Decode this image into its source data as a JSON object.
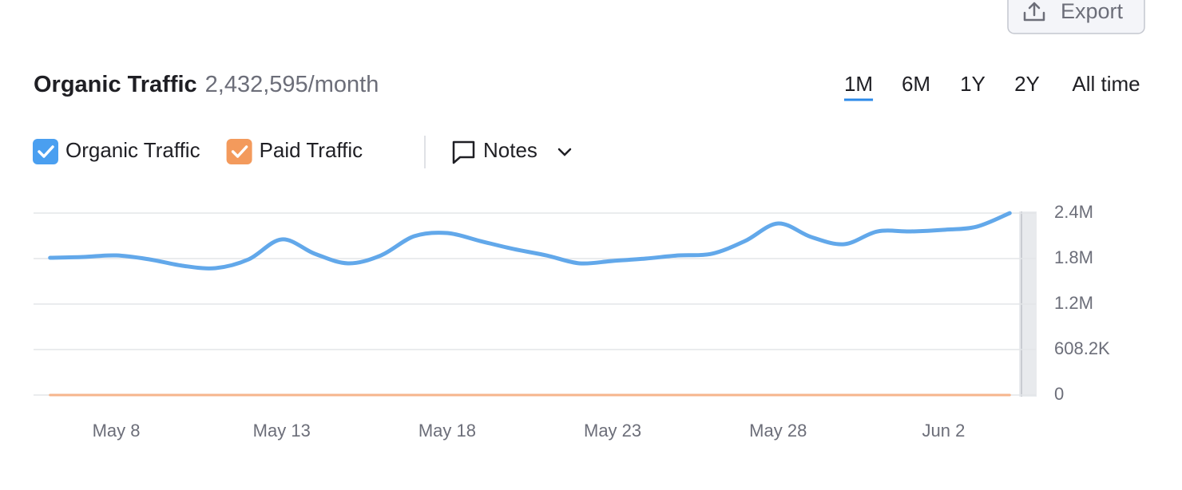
{
  "export_label": "Export",
  "range_options": [
    "1M",
    "6M",
    "1Y",
    "2Y",
    "All time"
  ],
  "selected_range": 0,
  "notes_label": "Notes",
  "chart_data": {
    "type": "line",
    "title": "Organic Traffic",
    "subtitle": "2,432,595/month",
    "categories": [
      null,
      null,
      "May 8",
      null,
      null,
      null,
      null,
      "May 13",
      null,
      null,
      null,
      null,
      "May 18",
      null,
      null,
      null,
      null,
      "May 23",
      null,
      null,
      null,
      null,
      "May 28",
      null,
      null,
      null,
      null,
      "Jun 2",
      null,
      null
    ],
    "series": [
      {
        "name": "Organic Traffic",
        "color": "#62a8ea",
        "checkbox_color": "#4a9ff0",
        "values": [
          1835000,
          1846000,
          1867000,
          1814000,
          1729000,
          1697000,
          1814000,
          2081000,
          1889000,
          1761000,
          1867000,
          2123000,
          2166000,
          2059000,
          1953000,
          1867000,
          1761000,
          1793000,
          1825000,
          1867000,
          1889000,
          2059000,
          2294000,
          2113000,
          2017000,
          2187000,
          2187000,
          2209000,
          2251000,
          2432595
        ]
      },
      {
        "name": "Paid Traffic",
        "color": "#f6b58c",
        "checkbox_color": "#f39a5c",
        "values": [
          0,
          0,
          0,
          0,
          0,
          0,
          0,
          0,
          0,
          0,
          0,
          0,
          0,
          0,
          0,
          0,
          0,
          0,
          0,
          0,
          0,
          0,
          0,
          0,
          0,
          0,
          0,
          0,
          0,
          0
        ]
      }
    ],
    "ylim": [
      0,
      2432800
    ],
    "yticks": [
      0,
      {
        "value": 608200,
        "label": "608.2K"
      },
      {
        "value": 1216400,
        "label": "1.2M"
      },
      {
        "value": 1824600,
        "label": "1.8M"
      },
      {
        "value": 2432800,
        "label": "2.4M"
      }
    ],
    "grid": true
  }
}
